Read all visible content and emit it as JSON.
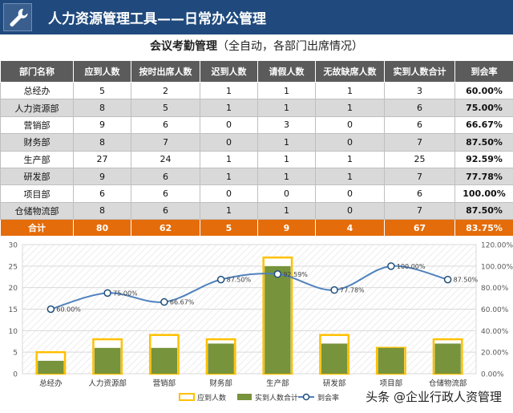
{
  "header": {
    "title": "人力资源管理工具——日常办公管理",
    "icon": "wrench-icon"
  },
  "subtitle": {
    "main": "会议考勤管理",
    "detail": "（全自动，各部门出席情况）"
  },
  "table": {
    "columns": [
      "部门名称",
      "应到人数",
      "按时出席人数",
      "迟到人数",
      "请假人数",
      "无故缺席人数",
      "实到人数合计",
      "到会率"
    ],
    "rows": [
      [
        "总经办",
        "5",
        "2",
        "1",
        "1",
        "1",
        "3",
        "60.00%"
      ],
      [
        "人力资源部",
        "8",
        "5",
        "1",
        "1",
        "1",
        "6",
        "75.00%"
      ],
      [
        "营销部",
        "9",
        "6",
        "0",
        "3",
        "0",
        "6",
        "66.67%"
      ],
      [
        "财务部",
        "8",
        "7",
        "0",
        "1",
        "0",
        "7",
        "87.50%"
      ],
      [
        "生产部",
        "27",
        "24",
        "1",
        "1",
        "1",
        "25",
        "92.59%"
      ],
      [
        "研发部",
        "9",
        "6",
        "1",
        "1",
        "1",
        "7",
        "77.78%"
      ],
      [
        "项目部",
        "6",
        "6",
        "0",
        "0",
        "0",
        "6",
        "100.00%"
      ],
      [
        "仓储物流部",
        "8",
        "6",
        "1",
        "1",
        "0",
        "7",
        "87.50%"
      ]
    ],
    "total": [
      "合计",
      "80",
      "62",
      "5",
      "9",
      "4",
      "67",
      "83.75%"
    ]
  },
  "chart_data": {
    "type": "bar",
    "categories": [
      "总经办",
      "人力资源部",
      "营销部",
      "财务部",
      "生产部",
      "研发部",
      "项目部",
      "仓储物流部"
    ],
    "series": [
      {
        "name": "应到人数",
        "type": "bar",
        "values": [
          5,
          8,
          9,
          8,
          27,
          9,
          6,
          8
        ],
        "color": "#ffc000"
      },
      {
        "name": "实到人数合计",
        "type": "bar",
        "values": [
          3,
          6,
          6,
          7,
          25,
          7,
          6,
          7
        ],
        "color": "#77933c"
      },
      {
        "name": "到会率",
        "type": "line",
        "axis": "right",
        "values": [
          60.0,
          75.0,
          66.67,
          87.5,
          92.59,
          77.78,
          100.0,
          87.5
        ],
        "labels": [
          "60.00%",
          "75.00%",
          "66.67%",
          "87.50%",
          "92.59%",
          "77.78%",
          "100.00%",
          "87.50%"
        ],
        "color": "#4f81bd"
      }
    ],
    "y_left": {
      "min": 0,
      "max": 30,
      "ticks": [
        0,
        5,
        10,
        15,
        20,
        25,
        30
      ],
      "tick_labels": [
        "0",
        "5",
        "10",
        "15",
        "20",
        "25",
        "30"
      ]
    },
    "y_right": {
      "min": 0,
      "max": 120,
      "ticks": [
        0,
        20,
        40,
        60,
        80,
        100,
        120
      ],
      "tick_labels": [
        "0.00%",
        "20.00%",
        "40.00%",
        "60.00%",
        "80.00%",
        "100.00%",
        "120.00%"
      ]
    },
    "grid": true,
    "legend_position": "bottom"
  },
  "watermark": "头条 @企业行政人资管理"
}
